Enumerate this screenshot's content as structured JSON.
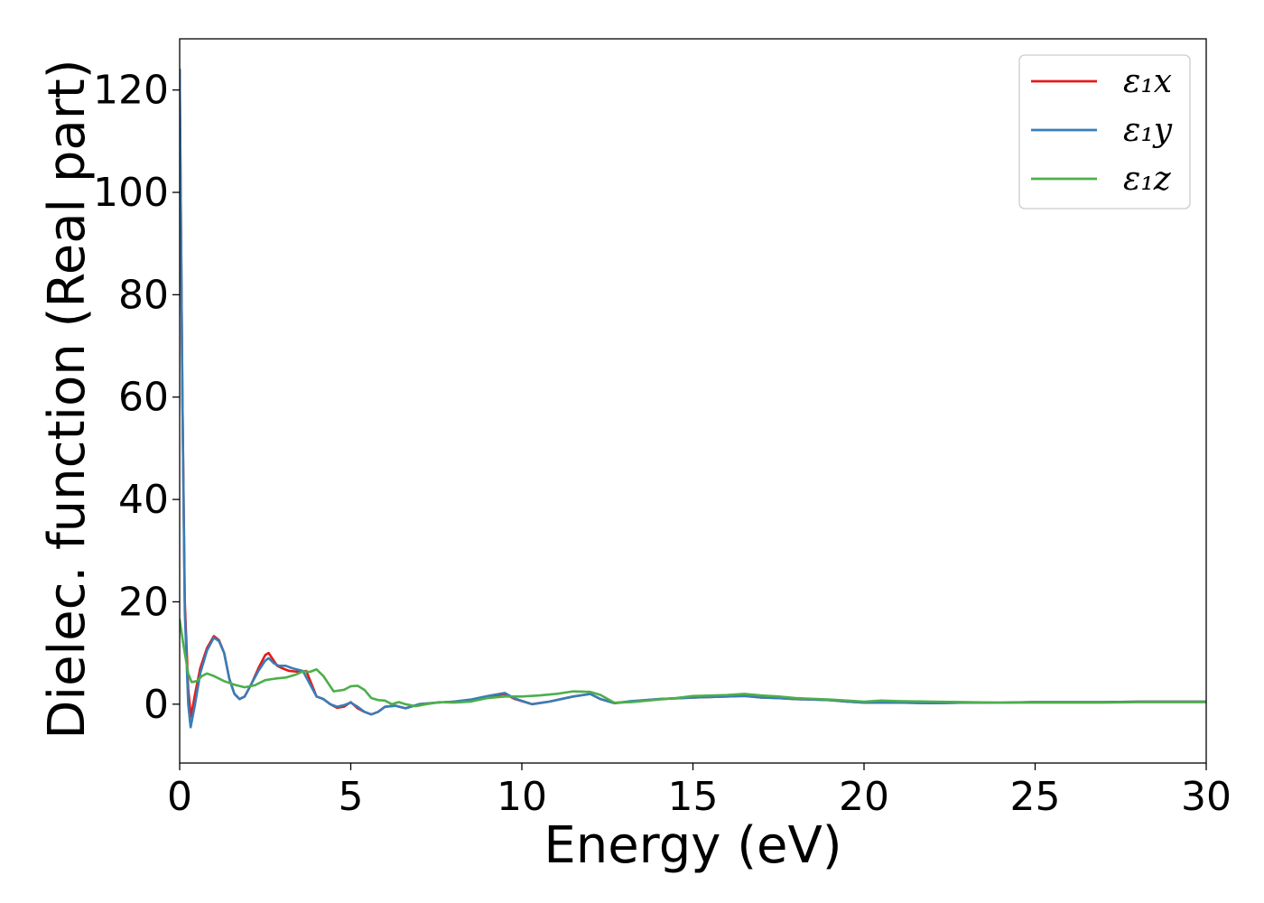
{
  "chart_data": {
    "type": "line",
    "title": "",
    "xlabel": "Energy (eV)",
    "ylabel": "Dielec. function (Real part)",
    "xlim": [
      0,
      30
    ],
    "ylim": [
      -11.5,
      130
    ],
    "x_ticks": [
      0,
      5,
      10,
      15,
      20,
      25,
      30
    ],
    "y_ticks": [
      0,
      20,
      40,
      60,
      80,
      100,
      120
    ],
    "grid": false,
    "legend_position": "top-right",
    "series": [
      {
        "name": "ε₁x",
        "color": "#e41a1c",
        "points": [
          [
            0,
            124
          ],
          [
            0.08,
            60
          ],
          [
            0.15,
            20
          ],
          [
            0.25,
            3
          ],
          [
            0.33,
            -2.5
          ],
          [
            0.45,
            2
          ],
          [
            0.6,
            7
          ],
          [
            0.8,
            11
          ],
          [
            1.0,
            13.3
          ],
          [
            1.15,
            12.5
          ],
          [
            1.3,
            10
          ],
          [
            1.45,
            5
          ],
          [
            1.6,
            2
          ],
          [
            1.75,
            1
          ],
          [
            1.9,
            1.5
          ],
          [
            2.1,
            4
          ],
          [
            2.3,
            7
          ],
          [
            2.5,
            9.6
          ],
          [
            2.6,
            10
          ],
          [
            2.7,
            9
          ],
          [
            2.85,
            7.5
          ],
          [
            3.0,
            7
          ],
          [
            3.2,
            6.5
          ],
          [
            3.5,
            6.3
          ],
          [
            3.7,
            6.5
          ],
          [
            3.85,
            4
          ],
          [
            4.0,
            1.5
          ],
          [
            4.2,
            1
          ],
          [
            4.4,
            0
          ],
          [
            4.6,
            -0.7
          ],
          [
            4.8,
            -0.5
          ],
          [
            5.0,
            0.4
          ],
          [
            5.2,
            -0.8
          ],
          [
            5.4,
            -1.5
          ],
          [
            5.6,
            -2
          ],
          [
            5.8,
            -1.5
          ],
          [
            6.0,
            -0.5
          ],
          [
            6.3,
            -0.3
          ],
          [
            6.6,
            -0.8
          ],
          [
            7.0,
            0
          ],
          [
            7.5,
            0.3
          ],
          [
            8.0,
            0.5
          ],
          [
            8.5,
            0.8
          ],
          [
            9.0,
            1.5
          ],
          [
            9.5,
            2
          ],
          [
            9.8,
            1
          ],
          [
            10.3,
            0
          ],
          [
            10.8,
            0.5
          ],
          [
            11.5,
            1.5
          ],
          [
            12.0,
            2
          ],
          [
            12.3,
            1
          ],
          [
            12.7,
            0.2
          ],
          [
            13.2,
            0.5
          ],
          [
            14.0,
            1
          ],
          [
            15.0,
            1.3
          ],
          [
            16.0,
            1.5
          ],
          [
            16.5,
            1.6
          ],
          [
            17.0,
            1.3
          ],
          [
            17.5,
            1.2
          ],
          [
            18.0,
            1
          ],
          [
            19.0,
            0.8
          ],
          [
            19.5,
            0.5
          ],
          [
            20.0,
            0.3
          ],
          [
            21.0,
            0.3
          ],
          [
            22.0,
            0.2
          ],
          [
            23.0,
            0.3
          ],
          [
            24.0,
            0.3
          ],
          [
            25.0,
            0.4
          ],
          [
            26.0,
            0.4
          ],
          [
            27.0,
            0.4
          ],
          [
            28.0,
            0.5
          ],
          [
            29.0,
            0.5
          ],
          [
            30.0,
            0.5
          ]
        ]
      },
      {
        "name": "ε₁y",
        "color": "#377eb8",
        "points": [
          [
            0,
            124
          ],
          [
            0.08,
            60
          ],
          [
            0.15,
            18
          ],
          [
            0.25,
            0
          ],
          [
            0.32,
            -4.5
          ],
          [
            0.45,
            0
          ],
          [
            0.6,
            6
          ],
          [
            0.8,
            10.5
          ],
          [
            1.0,
            13
          ],
          [
            1.15,
            12.3
          ],
          [
            1.3,
            10
          ],
          [
            1.45,
            5
          ],
          [
            1.6,
            2
          ],
          [
            1.75,
            1
          ],
          [
            1.9,
            1.5
          ],
          [
            2.1,
            4
          ],
          [
            2.3,
            6.5
          ],
          [
            2.5,
            8.5
          ],
          [
            2.6,
            9
          ],
          [
            2.75,
            8
          ],
          [
            2.9,
            7.5
          ],
          [
            3.1,
            7.5
          ],
          [
            3.3,
            7
          ],
          [
            3.6,
            6.5
          ],
          [
            3.8,
            4
          ],
          [
            4.0,
            1.5
          ],
          [
            4.2,
            1
          ],
          [
            4.4,
            0
          ],
          [
            4.6,
            -0.5
          ],
          [
            4.8,
            -0.2
          ],
          [
            5.0,
            0.3
          ],
          [
            5.2,
            -0.5
          ],
          [
            5.4,
            -1.5
          ],
          [
            5.6,
            -2
          ],
          [
            5.8,
            -1.5
          ],
          [
            6.0,
            -0.5
          ],
          [
            6.3,
            -0.3
          ],
          [
            6.6,
            -0.8
          ],
          [
            7.0,
            0
          ],
          [
            7.5,
            0.3
          ],
          [
            8.0,
            0.5
          ],
          [
            8.5,
            0.9
          ],
          [
            9.0,
            1.6
          ],
          [
            9.5,
            2.2
          ],
          [
            9.8,
            1.1
          ],
          [
            10.3,
            0
          ],
          [
            10.8,
            0.5
          ],
          [
            11.5,
            1.5
          ],
          [
            12.0,
            2
          ],
          [
            12.3,
            1
          ],
          [
            12.7,
            0.2
          ],
          [
            13.2,
            0.6
          ],
          [
            14.0,
            1
          ],
          [
            15.0,
            1.3
          ],
          [
            16.0,
            1.5
          ],
          [
            16.5,
            1.6
          ],
          [
            17.0,
            1.3
          ],
          [
            17.5,
            1.2
          ],
          [
            18.0,
            1
          ],
          [
            19.0,
            0.8
          ],
          [
            19.5,
            0.5
          ],
          [
            20.0,
            0.3
          ],
          [
            21.0,
            0.3
          ],
          [
            22.0,
            0.2
          ],
          [
            23.0,
            0.3
          ],
          [
            24.0,
            0.3
          ],
          [
            25.0,
            0.4
          ],
          [
            26.0,
            0.4
          ],
          [
            27.0,
            0.4
          ],
          [
            28.0,
            0.5
          ],
          [
            29.0,
            0.5
          ],
          [
            30.0,
            0.5
          ]
        ]
      },
      {
        "name": "ε₁z",
        "color": "#4daf4a",
        "points": [
          [
            0,
            16.5
          ],
          [
            0.1,
            12
          ],
          [
            0.25,
            6
          ],
          [
            0.35,
            4.3
          ],
          [
            0.5,
            4.5
          ],
          [
            0.65,
            5.5
          ],
          [
            0.8,
            6
          ],
          [
            1.0,
            5.5
          ],
          [
            1.3,
            4.5
          ],
          [
            1.6,
            3.8
          ],
          [
            1.9,
            3.3
          ],
          [
            2.2,
            3.7
          ],
          [
            2.5,
            4.7
          ],
          [
            2.8,
            5
          ],
          [
            3.1,
            5.2
          ],
          [
            3.4,
            5.8
          ],
          [
            3.6,
            6.4
          ],
          [
            3.8,
            6.3
          ],
          [
            4.0,
            6.8
          ],
          [
            4.2,
            5.5
          ],
          [
            4.5,
            2.5
          ],
          [
            4.8,
            2.8
          ],
          [
            5.0,
            3.5
          ],
          [
            5.2,
            3.6
          ],
          [
            5.4,
            2.8
          ],
          [
            5.6,
            1.2
          ],
          [
            5.8,
            0.8
          ],
          [
            6.0,
            0.7
          ],
          [
            6.2,
            0
          ],
          [
            6.4,
            0.4
          ],
          [
            6.6,
            0
          ],
          [
            6.9,
            -0.4
          ],
          [
            7.2,
            0
          ],
          [
            7.6,
            0.4
          ],
          [
            8.0,
            0.3
          ],
          [
            8.5,
            0.5
          ],
          [
            9.0,
            1.2
          ],
          [
            9.5,
            1.5
          ],
          [
            10.0,
            1.5
          ],
          [
            10.5,
            1.7
          ],
          [
            11.0,
            2
          ],
          [
            11.5,
            2.5
          ],
          [
            12.0,
            2.4
          ],
          [
            12.3,
            1.8
          ],
          [
            12.7,
            0.3
          ],
          [
            13.2,
            0.4
          ],
          [
            14.0,
            0.9
          ],
          [
            14.5,
            1.2
          ],
          [
            15.0,
            1.6
          ],
          [
            16.0,
            1.8
          ],
          [
            16.5,
            2
          ],
          [
            17.0,
            1.7
          ],
          [
            17.5,
            1.5
          ],
          [
            18.0,
            1.2
          ],
          [
            19.0,
            0.9
          ],
          [
            19.5,
            0.7
          ],
          [
            20.0,
            0.5
          ],
          [
            20.5,
            0.7
          ],
          [
            21.0,
            0.6
          ],
          [
            22.0,
            0.5
          ],
          [
            23.0,
            0.4
          ],
          [
            24.0,
            0.3
          ],
          [
            25.0,
            0.3
          ],
          [
            26.0,
            0.3
          ],
          [
            27.0,
            0.3
          ],
          [
            28.0,
            0.4
          ],
          [
            29.0,
            0.4
          ],
          [
            30.0,
            0.4
          ]
        ]
      }
    ]
  }
}
